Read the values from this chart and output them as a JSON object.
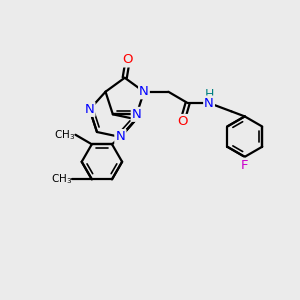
{
  "bg_color": "#ebebeb",
  "atom_colors": {
    "N": "#0000ff",
    "O": "#ff0000",
    "S": "#cccc00",
    "F": "#cc00cc",
    "H": "#008080",
    "C": "#000000"
  },
  "line_color": "#000000",
  "line_width": 1.6,
  "font_size": 9.5
}
